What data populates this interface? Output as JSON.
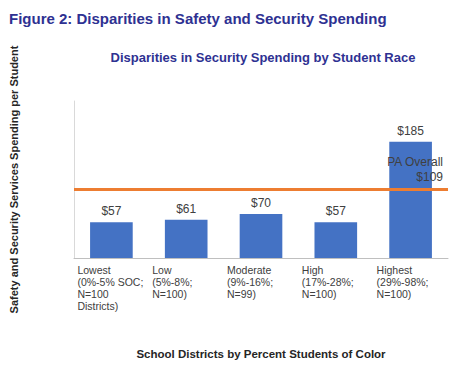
{
  "chart_data": {
    "type": "bar",
    "title": "Figure 2: Disparities in Safety and Security Spending",
    "subtitle": "Disparities in Security Spending by Student Race",
    "x_label": "School Districts by Percent Students of Color",
    "y_label": "Safety and Security Services Spending per Student",
    "categories": [
      "Lowest\n(0%-5% SOC;\nN=100\nDistricts)",
      "Low\n(5%-8%;\nN=100)",
      "Moderate\n(9%-16%;\nN=99)",
      "High\n(17%-28%;\nN=100)",
      "Highest\n(29%-98%;\nN=100)"
    ],
    "values": [
      57,
      61,
      70,
      57,
      185
    ],
    "value_labels": [
      "$57",
      "$61",
      "$70",
      "$57",
      "$185"
    ],
    "color": "#4472c4",
    "ylim": [
      0,
      250
    ],
    "grid": false,
    "data_labels": true,
    "tick_labels": "x",
    "annotations": [
      {
        "text": "PA Overall\n$109",
        "value": 109
      }
    ]
  }
}
